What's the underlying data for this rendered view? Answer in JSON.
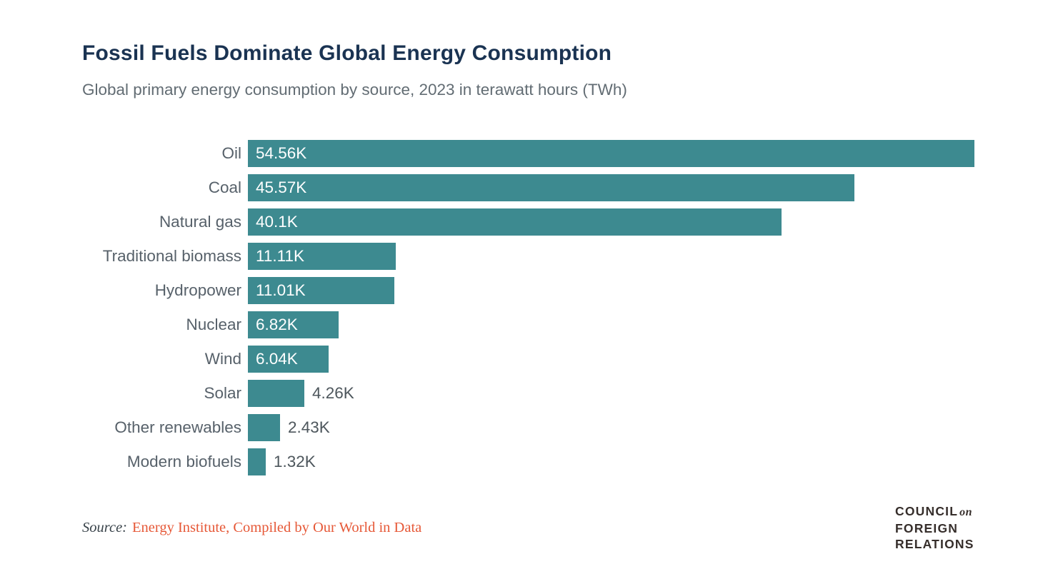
{
  "page": {
    "title": "Fossil Fuels Dominate Global Energy Consumption",
    "subtitle": "Global primary energy consumption by source, 2023 in terawatt hours (TWh)"
  },
  "source": {
    "prefix": "Source:",
    "text": "Energy Institute, Compiled by Our World in Data"
  },
  "logo": {
    "line1": "COUNCIL",
    "line1_italic": "on",
    "line2": "FOREIGN",
    "line3": "RELATIONS"
  },
  "colors": {
    "bar": "#3d8a90",
    "title": "#1a3352",
    "subtitle": "#626c73",
    "label": "#57616a",
    "value_inside": "#ffffff",
    "value_outside": "#4d565c",
    "source_prefix": "#39434a",
    "source_accent": "#e65837",
    "logo": "#362e2b"
  },
  "chart_data": {
    "type": "bar",
    "orientation": "horizontal",
    "title": "Fossil Fuels Dominate Global Energy Consumption",
    "subtitle": "Global primary energy consumption by source, 2023 in terawatt hours (TWh)",
    "unit": "TWh",
    "xlabel": "",
    "ylabel": "",
    "xlim": [
      0,
      58000
    ],
    "grid": false,
    "legend": false,
    "categories": [
      "Oil",
      "Coal",
      "Natural gas",
      "Traditional biomass",
      "Hydropower",
      "Nuclear",
      "Wind",
      "Solar",
      "Other renewables",
      "Modern biofuels"
    ],
    "values": [
      54560,
      45570,
      40100,
      11110,
      11010,
      6820,
      6040,
      4260,
      2430,
      1320
    ],
    "value_labels": [
      "54.56K",
      "45.57K",
      "40.1K",
      "11.11K",
      "11.01K",
      "6.82K",
      "6.04K",
      "4.26K",
      "2.43K",
      "1.32K"
    ],
    "value_label_inside": [
      true,
      true,
      true,
      true,
      true,
      true,
      true,
      false,
      false,
      false
    ]
  }
}
